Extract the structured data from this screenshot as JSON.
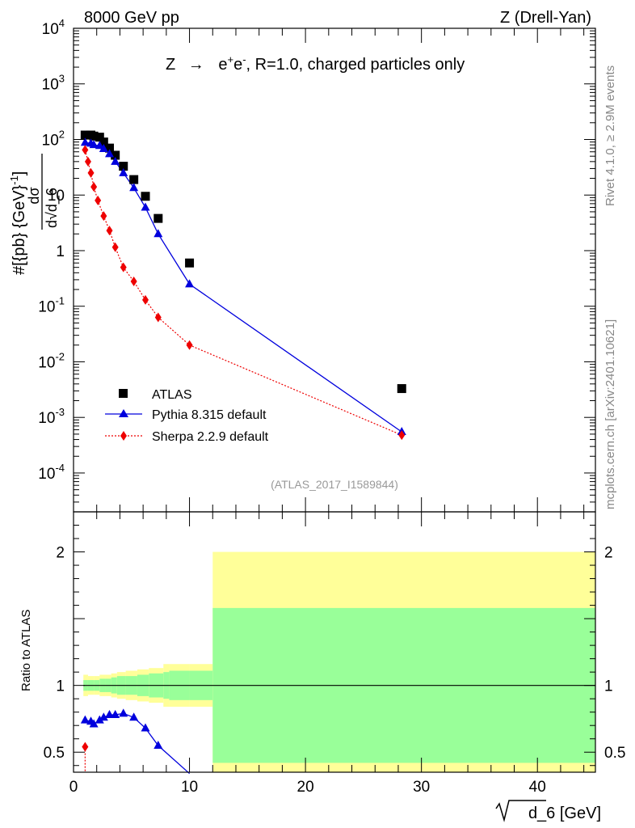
{
  "header": {
    "left_title": "8000 GeV pp",
    "right_title": "Z (Drell-Yan)",
    "process_z": "Z",
    "process_arrow": "→",
    "process_e": "e",
    "process_plus": "+",
    "process_minus": "-",
    "process_tail": ", R=1.0, charged particles only",
    "analysis_id": "(ATLAS_2017_I1589844)",
    "side_rivet": "Rivet 4.1.0, ≥ 2.9M events",
    "side_mcplots": "mcplots.cern.ch [arXiv:2401.10621]"
  },
  "axes": {
    "y_main_label": "#[{pb} {GeV}",
    "y_main_sup": "-1",
    "y_main_close": "]",
    "y_dsigma": "dσ",
    "y_d": "d",
    "y_d6": "d_6",
    "y_ratio_label": "Ratio to ATLAS",
    "x_label": "d_6 [GeV]",
    "y_main_ticks": [
      {
        "base": "10",
        "exp": "4",
        "value": 10000
      },
      {
        "base": "10",
        "exp": "3",
        "value": 1000
      },
      {
        "base": "10",
        "exp": "2",
        "value": 100
      },
      {
        "base": "10",
        "exp": "",
        "value": 10
      },
      {
        "base": "1",
        "exp": "",
        "value": 1
      },
      {
        "base": "10",
        "exp": "-1",
        "value": 0.1
      },
      {
        "base": "10",
        "exp": "-2",
        "value": 0.01
      },
      {
        "base": "10",
        "exp": "-3",
        "value": 0.001
      },
      {
        "base": "10",
        "exp": "-4",
        "value": 0.0001
      }
    ],
    "y_ratio_ticks": [
      {
        "label": "2",
        "value": 2
      },
      {
        "label": "1",
        "value": 1
      },
      {
        "label": "0.5",
        "value": 0.5
      }
    ],
    "x_ticks": [
      {
        "label": "0",
        "value": 0
      },
      {
        "label": "10",
        "value": 10
      },
      {
        "label": "20",
        "value": 20
      },
      {
        "label": "30",
        "value": 30
      },
      {
        "label": "40",
        "value": 40
      }
    ]
  },
  "legend": {
    "atlas": "ATLAS",
    "pythia": "Pythia 8.315 default",
    "sherpa": "Sherpa 2.2.9 default"
  },
  "colors": {
    "atlas": "#000000",
    "pythia": "#0000dd",
    "sherpa": "#ee0000",
    "band_inner": "#99ff99",
    "band_outer": "#ffff99"
  },
  "chart_data": {
    "type": "scatter",
    "title": "Z → e+e-, R=1.0, charged particles only",
    "xlabel": "√d_6 [GeV]",
    "ylabel": "dσ/d√d_6 [pb GeV^-1]",
    "xlim": [
      0,
      45
    ],
    "ylim_main": [
      2e-05,
      10000
    ],
    "ylim_ratio": [
      0.35,
      2.3
    ],
    "log_y_main": true,
    "series": [
      {
        "name": "ATLAS",
        "x": [
          1.0,
          1.5,
          1.75,
          2.25,
          2.6,
          3.1,
          3.6,
          4.3,
          5.2,
          6.2,
          7.3,
          10.0,
          28.3
        ],
        "values": [
          120,
          120,
          115,
          110,
          90,
          70,
          52,
          33,
          19,
          9.5,
          3.8,
          0.6,
          0.0033
        ]
      },
      {
        "name": "Pythia 8.315 default",
        "x": [
          1.0,
          1.5,
          1.75,
          2.25,
          2.6,
          3.1,
          3.6,
          4.3,
          5.2,
          6.2,
          7.3,
          10.0,
          28.3
        ],
        "values": [
          88,
          85,
          80,
          77,
          68,
          55,
          40,
          25,
          13.5,
          6.0,
          2.0,
          0.25,
          0.00055
        ]
      },
      {
        "name": "Sherpa 2.2.9 default",
        "x": [
          1.0,
          1.25,
          1.5,
          1.75,
          2.1,
          2.6,
          3.1,
          3.6,
          4.3,
          5.2,
          6.2,
          7.3,
          10.0,
          28.3
        ],
        "values": [
          65,
          40,
          25,
          14,
          8.0,
          4.2,
          2.3,
          1.15,
          0.5,
          0.28,
          0.13,
          0.063,
          0.02,
          0.00048
        ]
      }
    ],
    "ratio": {
      "pythia": {
        "x": [
          1.0,
          1.5,
          1.75,
          2.25,
          2.6,
          3.1,
          3.6,
          4.3,
          5.2,
          6.2,
          7.3,
          10.0
        ],
        "values": [
          0.74,
          0.73,
          0.71,
          0.74,
          0.76,
          0.78,
          0.78,
          0.79,
          0.76,
          0.68,
          0.55,
          0.34
        ]
      },
      "sherpa": {
        "x": [
          1.0,
          1.1
        ],
        "values": [
          0.54,
          0.34
        ]
      },
      "band_edges": [
        0.85,
        1.25,
        1.75,
        2.25,
        2.75,
        3.25,
        3.75,
        4.5,
        5.5,
        6.5,
        7.75,
        8.25,
        10.0,
        12.0,
        45.0
      ],
      "band_inner": [
        0.04,
        0.04,
        0.04,
        0.05,
        0.05,
        0.06,
        0.07,
        0.07,
        0.08,
        0.09,
        0.1,
        0.11,
        0.11,
        0.58
      ],
      "band_outer": [
        0.08,
        0.07,
        0.07,
        0.08,
        0.08,
        0.09,
        0.1,
        0.11,
        0.12,
        0.13,
        0.16,
        0.16,
        0.16,
        1.0
      ]
    }
  }
}
